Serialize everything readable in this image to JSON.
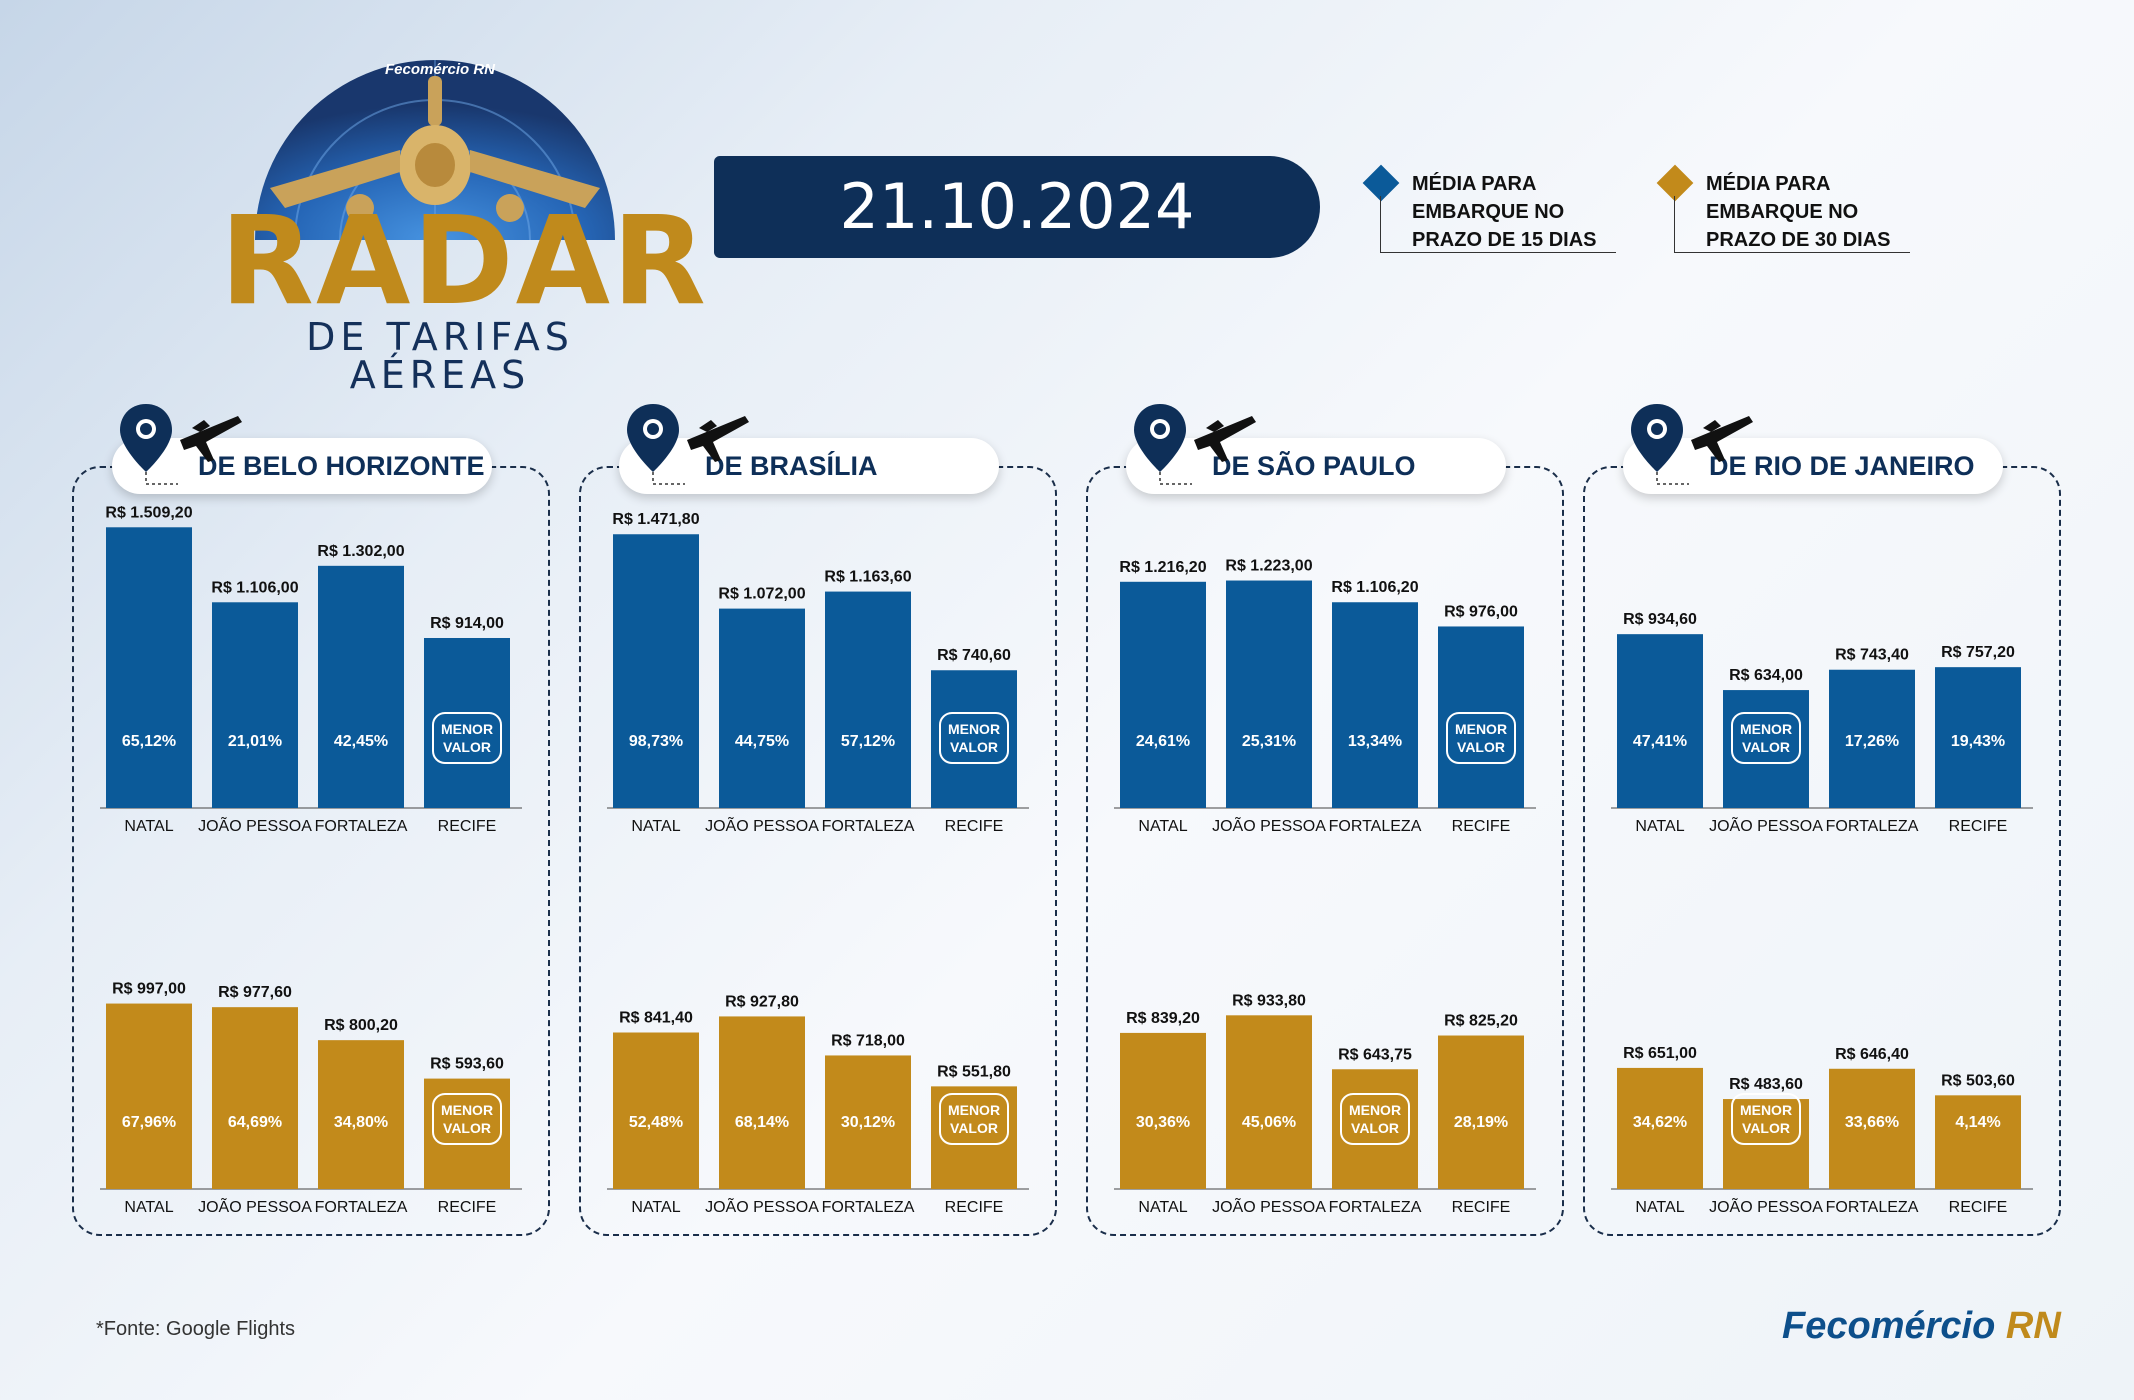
{
  "header": {
    "logo_top_label": "Fecomércio RN",
    "title": "RADAR",
    "subtitle": "DE TARIFAS AÉREAS",
    "date": "21.10.2024"
  },
  "legend": [
    {
      "label": "MÉDIA PARA\nEMBARQUE NO\nPRAZO DE 15 DIAS",
      "color": "#0b5a99"
    },
    {
      "label": "MÉDIA PARA\nEMBARQUE NO\nPRAZO DE 30 DIAS",
      "color": "#c28a1b"
    }
  ],
  "colors": {
    "blue": "#0b5a99",
    "gold": "#c28a1b",
    "navy": "#0e2f58"
  },
  "lowest_badge": "MENOR\nVALOR",
  "chart_data": [
    {
      "type": "bar",
      "title": "DE BELO HORIZONTE",
      "ylim": [
        0,
        1600
      ],
      "categories": [
        "NATAL",
        "JOÃO PESSOA",
        "FORTALEZA",
        "RECIFE"
      ],
      "series": [
        {
          "name": "MÉDIA PARA EMBARQUE NO PRAZO DE 15 DIAS",
          "values": [
            1509.2,
            1106.0,
            1302.0,
            914.0
          ],
          "labels": [
            "R$ 1.509,20",
            "R$ 1.106,00",
            "R$ 1.302,00",
            "R$ 914,00"
          ],
          "inner": [
            "65,12%",
            "21,01%",
            "42,45%",
            null
          ],
          "lowest": 3
        },
        {
          "name": "MÉDIA PARA EMBARQUE NO PRAZO DE 30 DIAS",
          "values": [
            997.0,
            977.6,
            800.2,
            593.6
          ],
          "labels": [
            "R$ 997,00",
            "R$ 977,60",
            "R$ 800,20",
            "R$ 593,60"
          ],
          "inner": [
            "67,96%",
            "64,69%",
            "34,80%",
            null
          ],
          "lowest": 3
        }
      ]
    },
    {
      "type": "bar",
      "title": "DE BRASÍLIA",
      "ylim": [
        0,
        1600
      ],
      "categories": [
        "NATAL",
        "JOÃO PESSOA",
        "FORTALEZA",
        "RECIFE"
      ],
      "series": [
        {
          "name": "MÉDIA PARA EMBARQUE NO PRAZO DE 15 DIAS",
          "values": [
            1471.8,
            1072.0,
            1163.6,
            740.6
          ],
          "labels": [
            "R$ 1.471,80",
            "R$ 1.072,00",
            "R$ 1.163,60",
            "R$ 740,60"
          ],
          "inner": [
            "98,73%",
            "44,75%",
            "57,12%",
            null
          ],
          "lowest": 3
        },
        {
          "name": "MÉDIA PARA EMBARQUE NO PRAZO DE 30 DIAS",
          "values": [
            841.4,
            927.8,
            718.0,
            551.8
          ],
          "labels": [
            "R$ 841,40",
            "R$ 927,80",
            "R$ 718,00",
            "R$ 551,80"
          ],
          "inner": [
            "52,48%",
            "68,14%",
            "30,12%",
            null
          ],
          "lowest": 3
        }
      ]
    },
    {
      "type": "bar",
      "title": "DE SÃO PAULO",
      "ylim": [
        0,
        1600
      ],
      "categories": [
        "NATAL",
        "JOÃO PESSOA",
        "FORTALEZA",
        "RECIFE"
      ],
      "series": [
        {
          "name": "MÉDIA PARA EMBARQUE NO PRAZO DE 15 DIAS",
          "values": [
            1216.2,
            1223.0,
            1106.2,
            976.0
          ],
          "labels": [
            "R$ 1.216,20",
            "R$ 1.223,00",
            "R$ 1.106,20",
            "R$ 976,00"
          ],
          "inner": [
            "24,61%",
            "25,31%",
            "13,34%",
            null
          ],
          "lowest": 3
        },
        {
          "name": "MÉDIA PARA EMBARQUE NO PRAZO DE 30 DIAS",
          "values": [
            839.2,
            933.8,
            643.75,
            825.2
          ],
          "labels": [
            "R$ 839,20",
            "R$ 933,80",
            "R$ 643,75",
            "R$ 825,20"
          ],
          "inner": [
            "30,36%",
            "45,06%",
            null,
            "28,19%"
          ],
          "lowest": 2
        }
      ]
    },
    {
      "type": "bar",
      "title": "DE RIO DE JANEIRO",
      "ylim": [
        0,
        1600
      ],
      "categories": [
        "NATAL",
        "JOÃO PESSOA",
        "FORTALEZA",
        "RECIFE"
      ],
      "series": [
        {
          "name": "MÉDIA PARA EMBARQUE NO PRAZO DE 15 DIAS",
          "values": [
            934.6,
            634.0,
            743.4,
            757.2
          ],
          "labels": [
            "R$ 934,60",
            "R$ 634,00",
            "R$ 743,40",
            "R$ 757,20"
          ],
          "inner": [
            "47,41%",
            null,
            "17,26%",
            "19,43%"
          ],
          "lowest": 1
        },
        {
          "name": "MÉDIA PARA EMBARQUE NO PRAZO DE 30 DIAS",
          "values": [
            651.0,
            483.6,
            646.4,
            503.6
          ],
          "labels": [
            "R$ 651,00",
            "R$ 483,60",
            "R$ 646,40",
            "R$ 503,60"
          ],
          "inner": [
            "34,62%",
            null,
            "33,66%",
            "4,14%"
          ],
          "lowest": 1
        }
      ]
    }
  ],
  "footer": {
    "source": "*Fonte: Google Flights",
    "brand": "Fecomércio",
    "brand_rn": "RN"
  }
}
